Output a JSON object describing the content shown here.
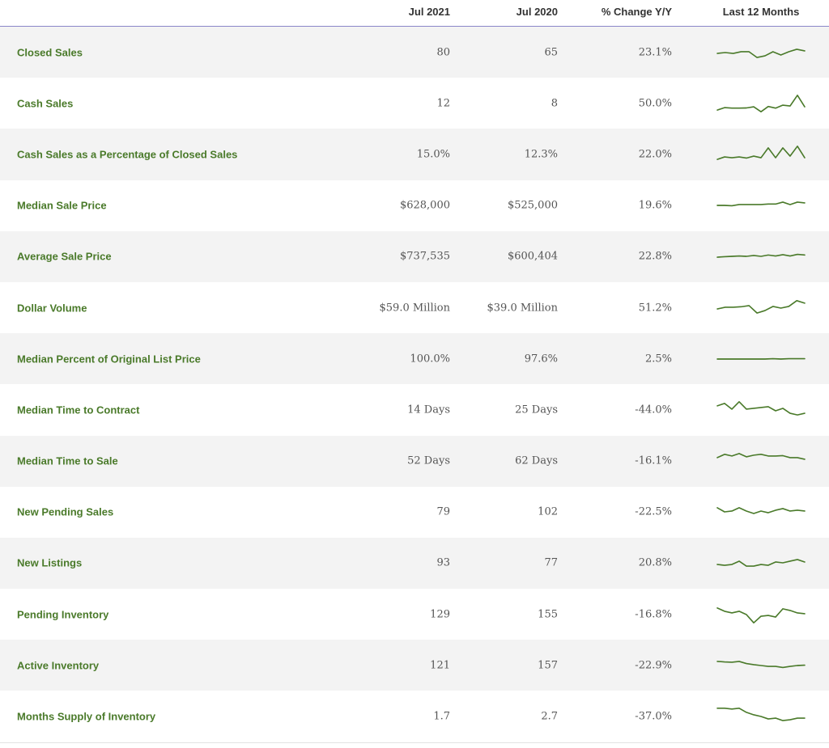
{
  "header": {
    "col_jul2021": "Jul 2021",
    "col_jul2020": "Jul 2020",
    "col_change": "% Change Y/Y",
    "col_last12": "Last 12 Months"
  },
  "colors": {
    "label_green": "#4a7a2a",
    "spark_green": "#4a7a2a",
    "row_shade": "#f3f3f3",
    "header_rule": "#8a86c8"
  },
  "chart_data": {
    "type": "table",
    "columns": [
      "Jul 2021",
      "Jul 2020",
      "% Change Y/Y",
      "Last 12 Months"
    ],
    "rows": [
      {
        "metric": "Closed Sales",
        "jul2021": "80",
        "jul2020": "65",
        "change": "23.1%",
        "trend": [
          0.45,
          0.5,
          0.45,
          0.55,
          0.55,
          0.2,
          0.3,
          0.55,
          0.35,
          0.55,
          0.7,
          0.6
        ]
      },
      {
        "metric": "Cash Sales",
        "jul2021": "12",
        "jul2020": "8",
        "change": "50.0%",
        "trend": [
          0.1,
          0.25,
          0.22,
          0.22,
          0.23,
          0.3,
          0.0,
          0.32,
          0.22,
          0.4,
          0.35,
          1.0,
          0.3
        ]
      },
      {
        "metric": "Cash Sales as a Percentage of Closed Sales",
        "jul2021": "15.0%",
        "jul2020": "12.3%",
        "change": "22.0%",
        "trend": [
          0.2,
          0.35,
          0.3,
          0.35,
          0.28,
          0.4,
          0.3,
          0.9,
          0.3,
          0.9,
          0.4,
          1.0,
          0.3
        ]
      },
      {
        "metric": "Median Sale Price",
        "jul2021": "$628,000",
        "jul2020": "$525,000",
        "change": "19.6%",
        "trend": [
          0.5,
          0.5,
          0.48,
          0.55,
          0.55,
          0.55,
          0.55,
          0.58,
          0.58,
          0.7,
          0.55,
          0.7,
          0.65
        ]
      },
      {
        "metric": "Average Sale Price",
        "jul2021": "$737,535",
        "jul2020": "$600,404",
        "change": "22.8%",
        "trend": [
          0.45,
          0.48,
          0.5,
          0.52,
          0.5,
          0.55,
          0.5,
          0.58,
          0.52,
          0.6,
          0.52,
          0.62,
          0.58
        ]
      },
      {
        "metric": "Dollar Volume",
        "jul2021": "$59.0 Million",
        "jul2020": "$39.0 Million",
        "change": "51.2%",
        "trend": [
          0.45,
          0.55,
          0.55,
          0.58,
          0.65,
          0.2,
          0.35,
          0.6,
          0.5,
          0.6,
          0.95,
          0.8
        ]
      },
      {
        "metric": "Median Percent of Original List Price",
        "jul2021": "100.0%",
        "jul2020": "97.6%",
        "change": "2.5%",
        "trend": [
          0.5,
          0.5,
          0.5,
          0.5,
          0.5,
          0.5,
          0.5,
          0.52,
          0.5,
          0.52,
          0.52,
          0.52
        ]
      },
      {
        "metric": "Median Time to Contract",
        "jul2021": "14 Days",
        "jul2020": "25 Days",
        "change": "-44.0%",
        "trend": [
          0.75,
          0.9,
          0.55,
          1.0,
          0.55,
          0.6,
          0.65,
          0.7,
          0.45,
          0.6,
          0.3,
          0.2,
          0.3
        ]
      },
      {
        "metric": "Median Time to Sale",
        "jul2021": "52 Days",
        "jul2020": "62 Days",
        "change": "-16.1%",
        "trend": [
          0.7,
          0.9,
          0.8,
          0.95,
          0.75,
          0.85,
          0.9,
          0.8,
          0.8,
          0.82,
          0.7,
          0.7,
          0.6
        ]
      },
      {
        "metric": "New Pending Sales",
        "jul2021": "79",
        "jul2020": "102",
        "change": "-22.5%",
        "trend": [
          0.75,
          0.5,
          0.55,
          0.75,
          0.55,
          0.4,
          0.55,
          0.45,
          0.6,
          0.7,
          0.55,
          0.6,
          0.55
        ]
      },
      {
        "metric": "New Listings",
        "jul2021": "93",
        "jul2020": "77",
        "change": "20.8%",
        "trend": [
          0.4,
          0.35,
          0.4,
          0.6,
          0.3,
          0.3,
          0.4,
          0.35,
          0.55,
          0.5,
          0.6,
          0.7,
          0.55
        ]
      },
      {
        "metric": "Pending Inventory",
        "jul2021": "129",
        "jul2020": "155",
        "change": "-16.8%",
        "trend": [
          0.9,
          0.7,
          0.6,
          0.7,
          0.5,
          0.0,
          0.4,
          0.45,
          0.35,
          0.85,
          0.75,
          0.6,
          0.55
        ]
      },
      {
        "metric": "Active Inventory",
        "jul2021": "121",
        "jul2020": "157",
        "change": "-22.9%",
        "trend": [
          0.75,
          0.72,
          0.7,
          0.75,
          0.62,
          0.55,
          0.5,
          0.45,
          0.45,
          0.38,
          0.45,
          0.5,
          0.52
        ]
      },
      {
        "metric": "Months Supply of Inventory",
        "jul2021": "1.7",
        "jul2020": "2.7",
        "change": "-37.0%",
        "trend": [
          1.0,
          1.0,
          0.95,
          1.0,
          0.75,
          0.6,
          0.5,
          0.35,
          0.4,
          0.25,
          0.3,
          0.4,
          0.4
        ]
      }
    ]
  }
}
